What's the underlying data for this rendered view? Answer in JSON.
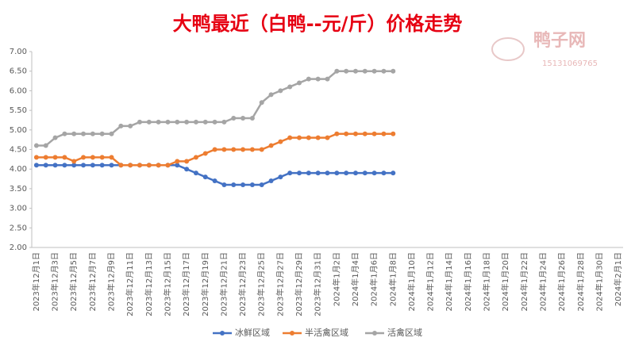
{
  "chart_data": {
    "type": "line",
    "title": "大鸭最近（白鸭--元/斤）价格走势",
    "watermark": {
      "brand": "鸭子网",
      "phone": "15131069765"
    },
    "categories": [
      "2023年12月1日",
      null,
      "2023年12月3日",
      null,
      "2023年12月5日",
      null,
      "2023年12月7日",
      null,
      "2023年12月9日",
      null,
      "2023年12月11日",
      null,
      "2023年12月13日",
      null,
      "2023年12月15日",
      null,
      "2023年12月17日",
      null,
      "2023年12月19日",
      null,
      "2023年12月21日",
      null,
      "2023年12月23日",
      null,
      "2023年12月25日",
      null,
      "2023年12月27日",
      null,
      "2023年12月29日",
      null,
      "2023年12月31日",
      null,
      "2024年1月2日",
      null,
      "2024年1月4日",
      null,
      "2024年1月6日",
      null,
      "2024年1月8日",
      null,
      "2024年1月10日",
      null,
      "2024年1月12日",
      null,
      "2024年1月14日",
      null,
      "2024年1月16日",
      null,
      "2024年1月18日",
      null,
      "2024年1月20日",
      null,
      "2024年1月22日",
      null,
      "2024年1月24日",
      null,
      "2024年1月26日",
      null,
      "2024年1月28日",
      null,
      "2024年1月30日",
      null,
      "2024年2月1日"
    ],
    "series": [
      {
        "name": "冰鲜区域",
        "color": "#4472c4",
        "values": [
          4.1,
          4.1,
          4.1,
          4.1,
          4.1,
          4.1,
          4.1,
          4.1,
          4.1,
          4.1,
          4.1,
          4.1,
          4.1,
          4.1,
          4.1,
          4.1,
          4.0,
          3.9,
          3.8,
          3.7,
          3.6,
          3.6,
          3.6,
          3.6,
          3.6,
          3.7,
          3.8,
          3.9,
          3.9,
          3.9,
          3.9,
          3.9,
          3.9,
          3.9,
          3.9,
          3.9,
          3.9,
          3.9,
          3.9,
          null,
          null,
          null,
          null,
          null,
          null,
          null,
          null,
          null,
          null,
          null,
          null,
          null,
          null,
          null,
          null,
          null,
          null,
          null,
          null,
          null,
          null,
          null,
          null
        ]
      },
      {
        "name": "半活禽区域",
        "color": "#ed7d31",
        "values": [
          4.3,
          4.3,
          4.3,
          4.3,
          4.2,
          4.3,
          4.3,
          4.3,
          4.3,
          4.1,
          4.1,
          4.1,
          4.1,
          4.1,
          4.1,
          4.2,
          4.2,
          4.3,
          4.4,
          4.5,
          4.5,
          4.5,
          4.5,
          4.5,
          4.5,
          4.6,
          4.7,
          4.8,
          4.8,
          4.8,
          4.8,
          4.8,
          4.9,
          4.9,
          4.9,
          4.9,
          4.9,
          4.9,
          4.9,
          null,
          null,
          null,
          null,
          null,
          null,
          null,
          null,
          null,
          null,
          null,
          null,
          null,
          null,
          null,
          null,
          null,
          null,
          null,
          null,
          null,
          null,
          null,
          null
        ]
      },
      {
        "name": "活禽区域",
        "color": "#a5a5a5",
        "values": [
          4.6,
          4.6,
          4.8,
          4.9,
          4.9,
          4.9,
          4.9,
          4.9,
          4.9,
          5.1,
          5.1,
          5.2,
          5.2,
          5.2,
          5.2,
          5.2,
          5.2,
          5.2,
          5.2,
          5.2,
          5.2,
          5.3,
          5.3,
          5.3,
          5.7,
          5.9,
          6.0,
          6.1,
          6.2,
          6.3,
          6.3,
          6.3,
          6.5,
          6.5,
          6.5,
          6.5,
          6.5,
          6.5,
          6.5,
          null,
          null,
          null,
          null,
          null,
          null,
          null,
          null,
          null,
          null,
          null,
          null,
          null,
          null,
          null,
          null,
          null,
          null,
          null,
          null,
          null,
          null,
          null,
          null
        ]
      }
    ],
    "ylim": [
      2,
      7
    ],
    "yticks": [
      {
        "value": 2,
        "label": "2.00"
      },
      {
        "value": 2.5,
        "label": "2.50"
      },
      {
        "value": 3,
        "label": "3.00"
      },
      {
        "value": 3.5,
        "label": "3.50"
      },
      {
        "value": 4,
        "label": "4.00"
      },
      {
        "value": 4.5,
        "label": "4.50"
      },
      {
        "value": 5,
        "label": "5.00"
      },
      {
        "value": 5.5,
        "label": "5.50"
      },
      {
        "value": 6,
        "label": "6.00"
      },
      {
        "value": 6.5,
        "label": "6.50"
      },
      {
        "value": 7,
        "label": "7.00"
      }
    ],
    "grid": false,
    "legend": "bottom"
  }
}
